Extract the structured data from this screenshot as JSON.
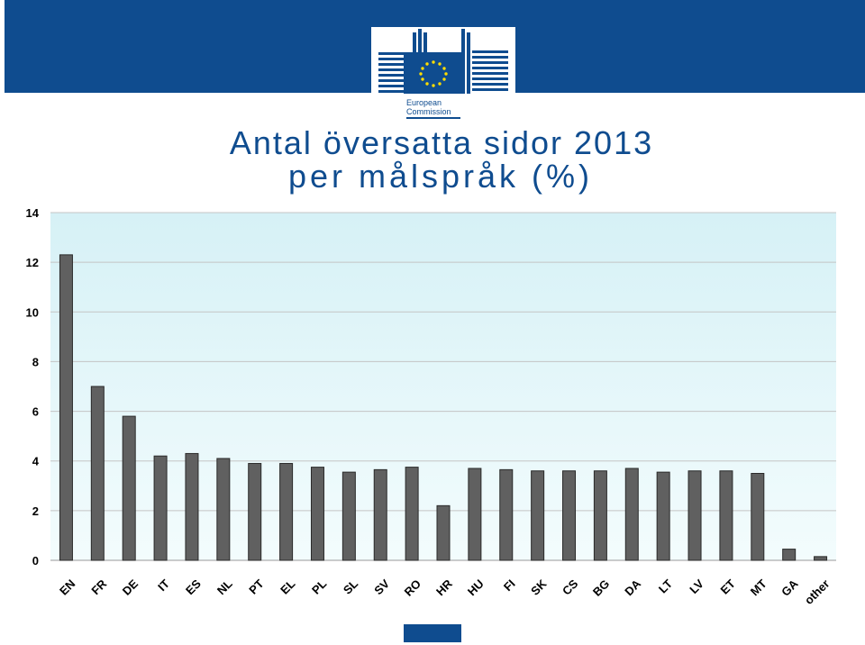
{
  "logo": {
    "line1": "European",
    "line2": "Commission"
  },
  "title": {
    "line1": "Antal översatta sidor 2013",
    "line2": "per målspråk (%)"
  },
  "colors": {
    "brand": "#0f4c8f",
    "bar": "#606060",
    "plot_top": "#d6f1f6",
    "plot_bottom": "#f3fcfd",
    "flag_star": "#ffdd00"
  },
  "chart_data": {
    "type": "bar",
    "title": "Antal översatta sidor 2013 per målspråk (%)",
    "categories": [
      "EN",
      "FR",
      "DE",
      "IT",
      "ES",
      "NL",
      "PT",
      "EL",
      "PL",
      "SL",
      "SV",
      "RO",
      "HR",
      "HU",
      "FI",
      "SK",
      "CS",
      "BG",
      "DA",
      "LT",
      "LV",
      "ET",
      "MT",
      "GA",
      "other"
    ],
    "values": [
      12.3,
      7.0,
      5.8,
      4.2,
      4.3,
      4.1,
      3.9,
      3.9,
      3.75,
      3.55,
      3.65,
      3.75,
      2.2,
      3.7,
      3.65,
      3.6,
      3.6,
      3.6,
      3.7,
      3.55,
      3.6,
      3.6,
      3.5,
      0.45,
      0.15
    ],
    "ylim": [
      0,
      14
    ],
    "yticks": [
      0,
      2,
      4,
      6,
      8,
      10,
      12,
      14
    ],
    "grid": true,
    "legend": "none"
  }
}
